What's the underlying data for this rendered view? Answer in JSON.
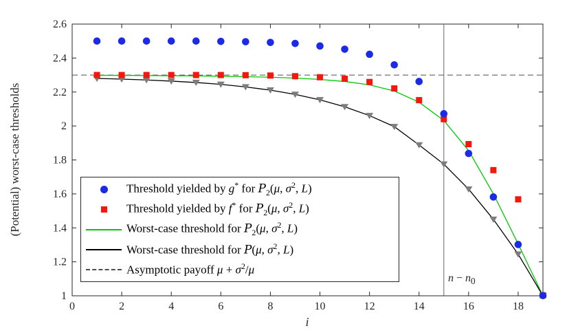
{
  "figure": {
    "bg": "#ffffff",
    "axis_color": "#262626"
  },
  "chart_data": {
    "type": "line",
    "title": "",
    "xlabel": "i",
    "ylabel": "(Potential) worst-case thresholds",
    "xlim": [
      0,
      19
    ],
    "ylim": [
      1,
      2.6
    ],
    "grid": false,
    "legend_position": "south-west",
    "xticks": {
      "values": [
        0,
        2,
        4,
        6,
        8,
        10,
        12,
        14,
        16,
        18
      ],
      "labels": [
        "0",
        "2",
        "4",
        "6",
        "8",
        "10",
        "12",
        "14",
        "16",
        "18"
      ]
    },
    "yticks": {
      "values": [
        1,
        1.2,
        1.4,
        1.6,
        1.8,
        2,
        2.2,
        2.4,
        2.6
      ],
      "labels": [
        "1",
        "1.2",
        "1.4",
        "1.6",
        "1.8",
        "2",
        "2.2",
        "2.4",
        "2.6"
      ]
    },
    "x": [
      1,
      2,
      3,
      4,
      5,
      6,
      7,
      8,
      9,
      10,
      11,
      12,
      13,
      14,
      15,
      16,
      17,
      18,
      19
    ],
    "series": [
      {
        "name": "threshold-g-star",
        "kind": "scatter",
        "marker": "circle",
        "color": "#1b2ae6",
        "values": [
          2.5,
          2.5,
          2.5,
          2.5,
          2.5,
          2.498,
          2.496,
          2.492,
          2.486,
          2.471,
          2.452,
          2.422,
          2.36,
          2.262,
          2.072,
          1.838,
          1.582,
          1.302,
          1.001
        ]
      },
      {
        "name": "threshold-f-star",
        "kind": "scatter",
        "marker": "square",
        "color": "#f2180e",
        "values": [
          2.3,
          2.3,
          2.3,
          2.3,
          2.3,
          2.3,
          2.299,
          2.297,
          2.293,
          2.287,
          2.278,
          2.259,
          2.221,
          2.152,
          2.04,
          1.893,
          1.74,
          1.568,
          1.003
        ]
      },
      {
        "name": "worst-case-P2",
        "kind": "line",
        "marker": null,
        "color": "#00c800",
        "values": [
          2.298,
          2.298,
          2.297,
          2.296,
          2.295,
          2.293,
          2.29,
          2.287,
          2.282,
          2.274,
          2.262,
          2.242,
          2.206,
          2.14,
          2.032,
          1.855,
          1.6,
          1.305,
          1.0
        ]
      },
      {
        "name": "worst-case-P",
        "kind": "line",
        "marker": "triangle-down",
        "marker_color": "#7d7d7d",
        "color": "#000000",
        "values": [
          2.28,
          2.276,
          2.271,
          2.264,
          2.256,
          2.245,
          2.23,
          2.211,
          2.186,
          2.154,
          2.113,
          2.061,
          1.996,
          1.888,
          1.775,
          1.628,
          1.45,
          1.245,
          1.0
        ]
      }
    ],
    "asymptote": {
      "y": 2.3,
      "style": "dashed",
      "color": "#4d4d4d",
      "label": "Asymptotic payoff μ + σ²/μ"
    },
    "vline": {
      "x": 15,
      "color": "#666666",
      "label": "n − n₀",
      "label_html": "<i>n</i> − <i>n</i><sub>0</sub>"
    }
  },
  "legend": {
    "border_color": "#262626",
    "entries": [
      {
        "marker": "circle",
        "color": "#1b2ae6",
        "label": "Threshold yielded by g* for P₂(μ, σ², L)",
        "label_html": "Threshold yielded by <i>g</i><sup>*</sup> for <span class=\"cal\">P</span><sub>2</sub>(<i>μ</i>, <i>σ</i><sup>2</sup>, <i>L</i>)"
      },
      {
        "marker": "square",
        "color": "#f2180e",
        "label": "Threshold yielded by f* for P₂(μ, σ², L)",
        "label_html": "Threshold yielded by <i>f</i><sup>*</sup> for <span class=\"cal\">P</span><sub>2</sub>(<i>μ</i>, <i>σ</i><sup>2</sup>, <i>L</i>)"
      },
      {
        "marker": "line",
        "color": "#00c800",
        "label": "Worst-case threshold for P₂(μ, σ², L)",
        "label_html": "Worst-case threshold for <span class=\"cal\">P</span><sub>2</sub>(<i>μ</i>, <i>σ</i><sup>2</sup>, <i>L</i>)"
      },
      {
        "marker": "line",
        "color": "#000000",
        "label": "Worst-case threshold for P(μ, σ², L)",
        "label_html": "Worst-case threshold for <span class=\"cal\">P</span>(<i>μ</i>, <i>σ</i><sup>2</sup>, <i>L</i>)"
      },
      {
        "marker": "dashed-line",
        "color": "#4d4d4d",
        "label": "Asymptotic payoff μ + σ²/μ",
        "label_html": "Asymptotic payoff <i>μ</i> + <i>σ</i><sup>2</sup>/<i>μ</i>"
      }
    ]
  }
}
